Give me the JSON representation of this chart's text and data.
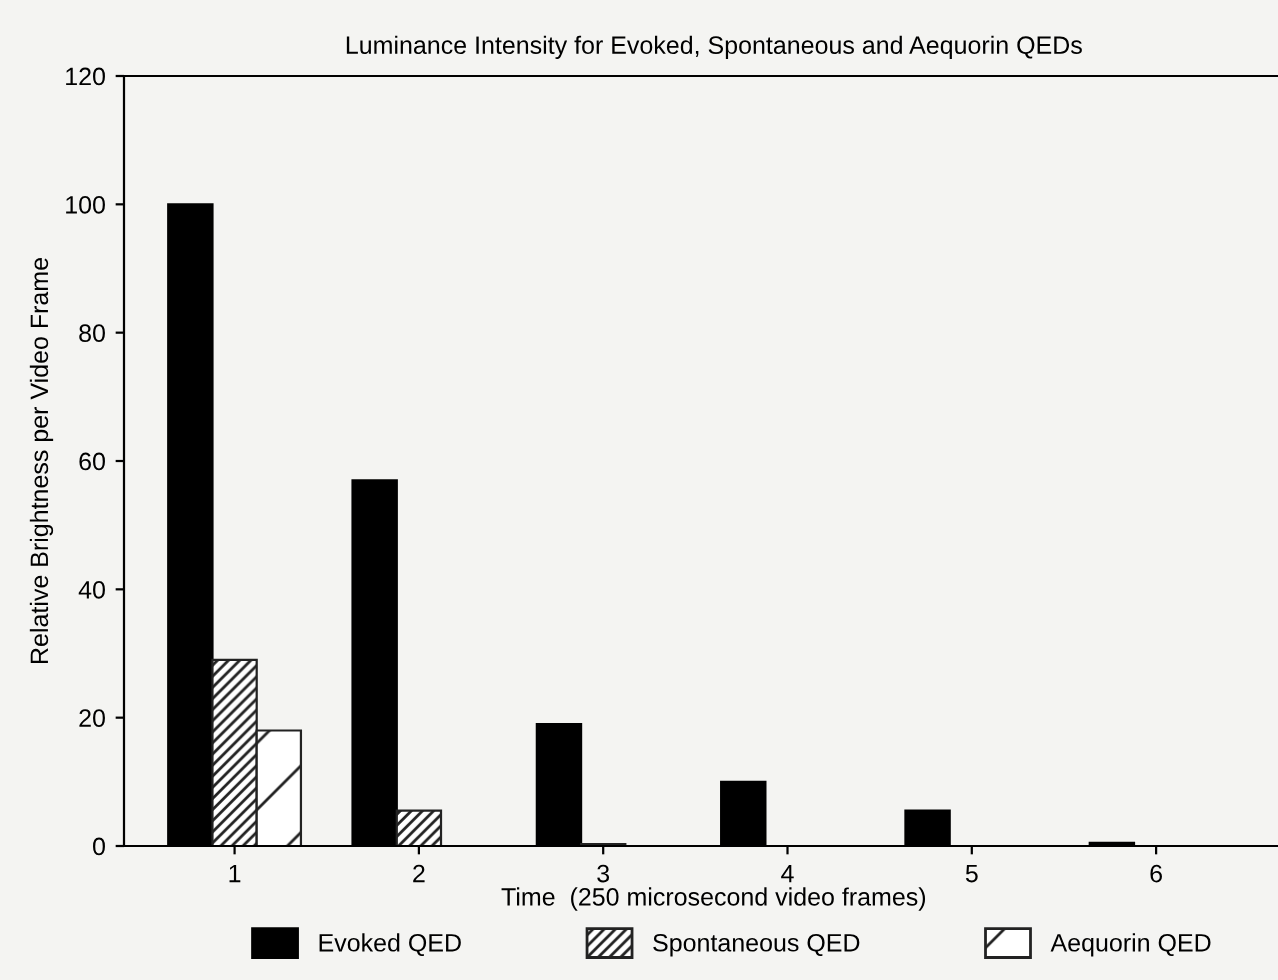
{
  "chart_data": {
    "type": "bar",
    "title": "Luminance Intensity for Evoked, Spontaneous and Aequorin QEDs",
    "xlabel": "Time  (250 microsecond video frames)",
    "ylabel": "Relative Brightness per Video Frame",
    "categories": [
      "1",
      "2",
      "3",
      "4",
      "5",
      "6"
    ],
    "series": [
      {
        "name": "Evoked QED",
        "color": "#000000",
        "values": [
          100,
          57,
          19,
          10,
          5.5,
          0.5
        ]
      },
      {
        "name": "Spontaneous QED",
        "color": "#222222",
        "values": [
          29,
          5.5,
          0.3,
          0,
          0,
          0
        ]
      },
      {
        "name": "Aequorin QED",
        "color": "#222222",
        "values": [
          18,
          0,
          0,
          0,
          0,
          0
        ]
      }
    ],
    "ylim": [
      0,
      120
    ],
    "yticks": [
      0,
      20,
      40,
      60,
      80,
      100,
      120
    ],
    "grid": false,
    "legend": "bottom"
  }
}
